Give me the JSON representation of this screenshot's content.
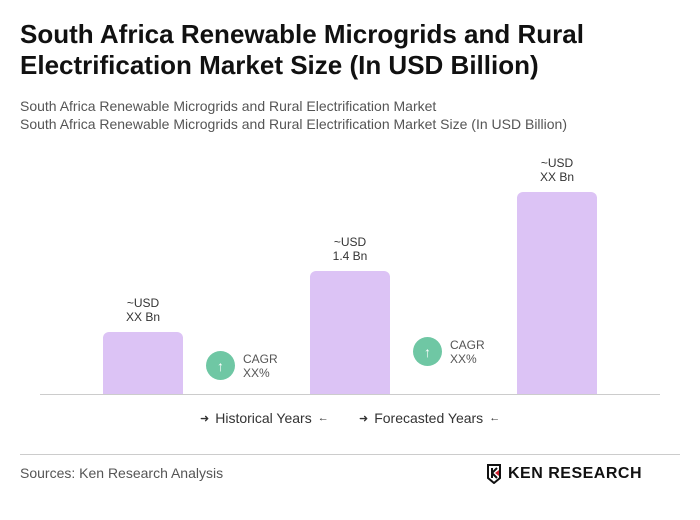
{
  "title": "South Africa Renewable Microgrids and Rural Electrification Market Size (In USD Billion)",
  "subtitle1": "South Africa Renewable Microgrids and Rural Electrification Market",
  "subtitle2": "South Africa Renewable Microgrids and Rural Electrification Market Size (In USD Billion)",
  "chart_data": {
    "type": "bar",
    "categories": [
      "",
      "",
      ""
    ],
    "values": [
      0.7,
      1.4,
      2.3
    ],
    "value_labels": [
      {
        "line1": "~USD",
        "line2": "XX Bn"
      },
      {
        "line1": "~USD",
        "line2": "1.4 Bn"
      },
      {
        "line1": "~USD",
        "line2": "XX Bn"
      }
    ],
    "bar_color": "#dcc3f5",
    "ylim": [
      0,
      2.5
    ],
    "grid": false,
    "cagr": [
      {
        "label": "CAGR",
        "value": "XX%"
      },
      {
        "label": "CAGR",
        "value": "XX%"
      }
    ],
    "cagr_color": "#6fc7a4",
    "legend": [
      "Historical Years",
      "Forecasted Years"
    ]
  },
  "sources": "Sources: Ken Research Analysis",
  "logo_text": "KEN RESEARCH"
}
